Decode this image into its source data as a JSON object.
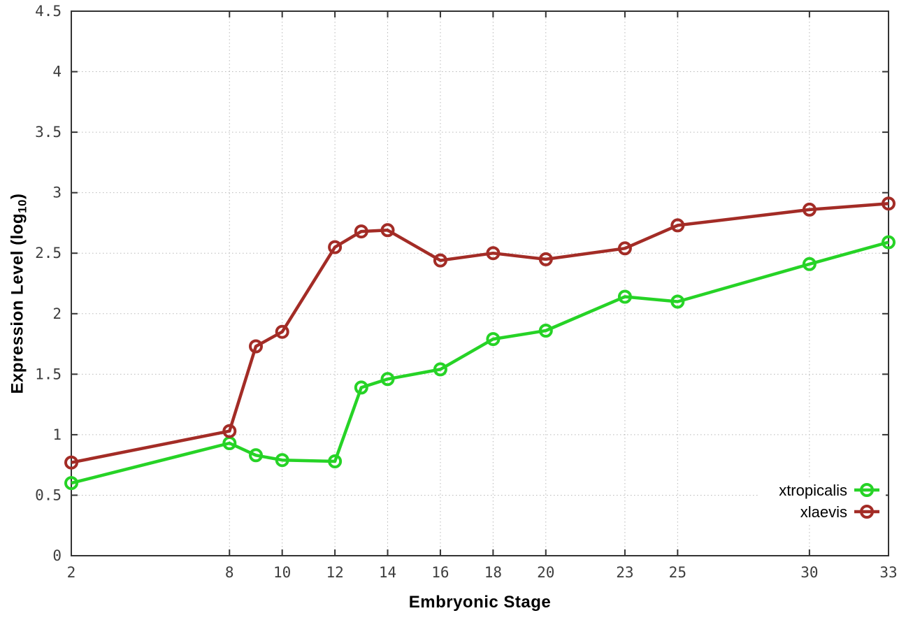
{
  "figure": {
    "background_color": "#ffffff",
    "border_color": "#333333",
    "grid_color": "#b8b8b8",
    "tick_label_color": "#3d3d3d"
  },
  "chart_data": {
    "type": "line",
    "title": "",
    "xlabel": "Embryonic Stage",
    "ylabel": "Expression Level (log10)",
    "ylabel_parts": {
      "prefix": "Expression Level (log",
      "subscript": "10",
      "suffix": ")"
    },
    "x": [
      2,
      8,
      9,
      10,
      12,
      13,
      14,
      16,
      18,
      20,
      23,
      25,
      30,
      33
    ],
    "series": [
      {
        "name": "xtropicalis",
        "color": "#26d326",
        "values": [
          0.6,
          0.93,
          0.83,
          0.79,
          0.78,
          1.39,
          1.46,
          1.54,
          1.79,
          1.86,
          2.14,
          2.1,
          2.41,
          2.59
        ]
      },
      {
        "name": "xlaevis",
        "color": "#a32c26",
        "values": [
          0.77,
          1.03,
          1.73,
          1.85,
          2.55,
          2.68,
          2.69,
          2.44,
          2.5,
          2.45,
          2.54,
          2.73,
          2.86,
          2.91
        ]
      }
    ],
    "xlim": [
      2,
      33
    ],
    "ylim": [
      0,
      4.5
    ],
    "xticks": [
      2,
      8,
      10,
      12,
      14,
      16,
      18,
      20,
      23,
      25,
      30,
      33
    ],
    "xtick_labels": [
      "2",
      "8",
      "10",
      "12",
      "14",
      "16",
      "18",
      "20",
      "23",
      "25",
      "30",
      "33"
    ],
    "yticks": [
      0,
      0.5,
      1,
      1.5,
      2,
      2.5,
      3,
      3.5,
      4,
      4.5
    ],
    "ytick_labels": [
      "0",
      "0.5",
      "1",
      "1.5",
      "2",
      "2.5",
      "3",
      "3.5",
      "4",
      "4.5"
    ],
    "grid": true,
    "grid_style": "dotted",
    "marker": "open-circle",
    "legend_position": "bottom-right",
    "legend_entries": [
      "xtropicalis",
      "xlaevis"
    ]
  }
}
